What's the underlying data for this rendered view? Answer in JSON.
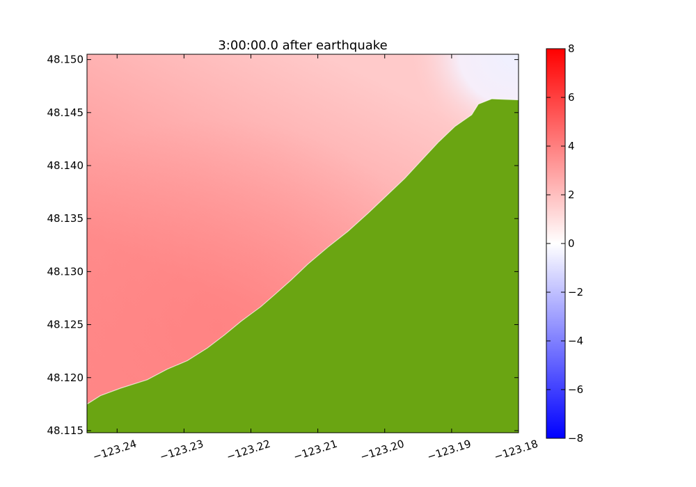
{
  "chart_data": {
    "type": "heatmap",
    "title": "3:00:00.0 after earthquake",
    "xlabel": "",
    "ylabel": "",
    "xlim": [
      -123.2445,
      -123.18
    ],
    "ylim": [
      48.1148,
      48.1505
    ],
    "x_ticks": [
      -123.24,
      -123.23,
      -123.22,
      -123.21,
      -123.2,
      -123.19,
      -123.18
    ],
    "x_tick_labels": [
      "−123.24",
      "−123.23",
      "−123.22",
      "−123.21",
      "−123.20",
      "−123.19",
      "−123.18"
    ],
    "y_ticks": [
      48.115,
      48.12,
      48.125,
      48.13,
      48.135,
      48.14,
      48.145,
      48.15
    ],
    "y_tick_labels": [
      "48.115",
      "48.120",
      "48.125",
      "48.130",
      "48.135",
      "48.140",
      "48.145",
      "48.150"
    ],
    "colorbar": {
      "range": [
        -8,
        8
      ],
      "ticks": [
        8,
        6,
        4,
        2,
        0,
        -2,
        -4,
        -6,
        -8
      ],
      "tick_labels": [
        "8",
        "6",
        "4",
        "2",
        "0",
        "−2",
        "−4",
        "−6",
        "−8"
      ],
      "colormap": [
        "#0000ff",
        "#ffffff",
        "#ff0000"
      ]
    },
    "land_color": "#6aa512",
    "coastline": [
      [
        -123.2445,
        48.1175
      ],
      [
        -123.2425,
        48.1183
      ],
      [
        -123.2395,
        48.119
      ],
      [
        -123.2355,
        48.1198
      ],
      [
        -123.2325,
        48.1208
      ],
      [
        -123.2295,
        48.1216
      ],
      [
        -123.2265,
        48.1228
      ],
      [
        -123.224,
        48.124
      ],
      [
        -123.2215,
        48.1253
      ],
      [
        -123.22,
        48.126
      ],
      [
        -123.2185,
        48.1267
      ],
      [
        -123.2165,
        48.1278
      ],
      [
        -123.214,
        48.1292
      ],
      [
        -123.2115,
        48.1307
      ],
      [
        -123.2085,
        48.1323
      ],
      [
        -123.2055,
        48.1338
      ],
      [
        -123.2025,
        48.1355
      ],
      [
        -123.2,
        48.137
      ],
      [
        -123.197,
        48.1388
      ],
      [
        -123.1945,
        48.1405
      ],
      [
        -123.192,
        48.1422
      ],
      [
        -123.1895,
        48.1437
      ],
      [
        -123.187,
        48.1448
      ],
      [
        -123.186,
        48.1458
      ],
      [
        -123.184,
        48.1463
      ],
      [
        -123.18,
        48.1462
      ]
    ],
    "sea_surface": [
      {
        "x": -123.2445,
        "y": 48.1505,
        "value": 1.6
      },
      {
        "x": -123.2445,
        "y": 48.1175,
        "value": 3.2
      },
      {
        "x": -123.215,
        "y": 48.128,
        "value": 4.0
      },
      {
        "x": -123.188,
        "y": 48.1445,
        "value": 2.0
      },
      {
        "x": -123.18,
        "y": 48.1505,
        "value": -0.3
      }
    ]
  }
}
